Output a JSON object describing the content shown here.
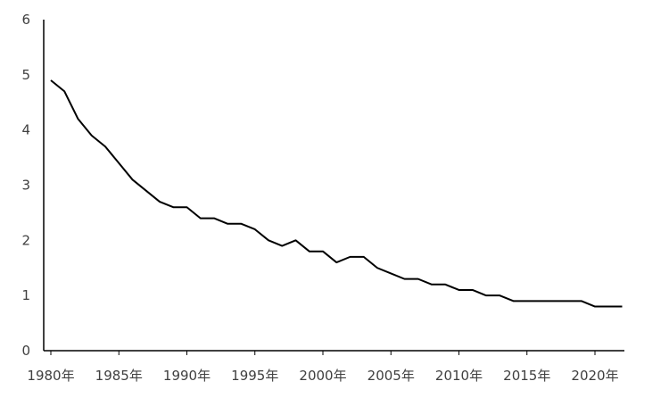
{
  "chart_data": {
    "type": "line",
    "title": "",
    "xlabel": "",
    "ylabel": "",
    "ylim": [
      0,
      6
    ],
    "yticks": [
      "0",
      "1",
      "2",
      "3",
      "4",
      "5",
      "6"
    ],
    "xtick_labels": [
      "1980年",
      "1985年",
      "1990年",
      "1995年",
      "2000年",
      "2005年",
      "2010年",
      "2015年",
      "2020年"
    ],
    "grid": false,
    "legend": "none",
    "line_color": "#000000",
    "axis_color": "#000000",
    "series": [
      {
        "x": [
          1980,
          1981,
          1982,
          1983,
          1984,
          1985,
          1986,
          1987,
          1988,
          1989,
          1990,
          1991,
          1992,
          1993,
          1994,
          1995,
          1996,
          1997,
          1998,
          1999,
          2000,
          2001,
          2002,
          2003,
          2004,
          2005,
          2006,
          2007,
          2008,
          2009,
          2010,
          2011,
          2012,
          2013,
          2014,
          2015,
          2016,
          2017,
          2018,
          2019,
          2020,
          2021,
          2022
        ],
        "values": [
          4.9,
          4.7,
          4.2,
          3.9,
          3.7,
          3.4,
          3.1,
          2.9,
          2.7,
          2.6,
          2.6,
          2.4,
          2.4,
          2.3,
          2.3,
          2.2,
          2.0,
          1.9,
          2.0,
          1.8,
          1.8,
          1.6,
          1.7,
          1.7,
          1.5,
          1.4,
          1.3,
          1.3,
          1.2,
          1.2,
          1.1,
          1.1,
          1.0,
          1.0,
          0.9,
          0.9,
          0.9,
          0.9,
          0.9,
          0.9,
          0.8,
          0.8,
          0.8
        ]
      }
    ]
  }
}
